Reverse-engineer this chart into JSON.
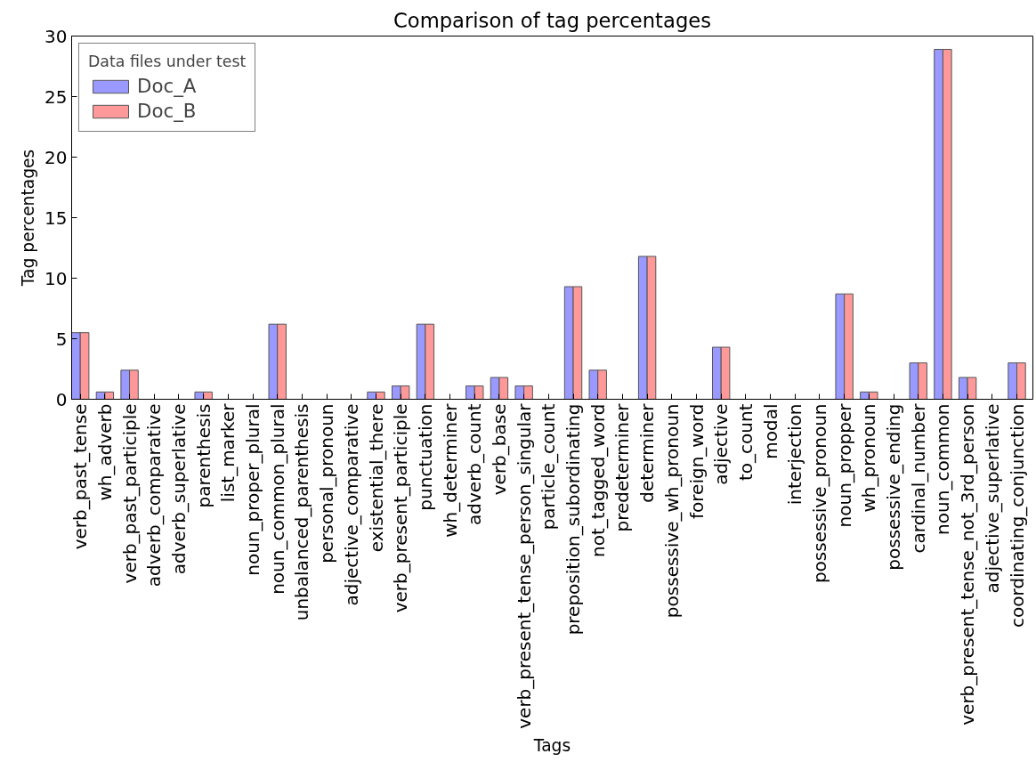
{
  "chart_data": {
    "type": "bar",
    "title": "Comparison of tag percentages",
    "xlabel": "Tags",
    "ylabel": "Tag percentages",
    "legend_title": "Data files under test",
    "categories": [
      "verb_past_tense",
      "wh_adverb",
      "verb_past_participle",
      "adverb_comparative",
      "adverb_superlative",
      "parenthesis",
      "list_marker",
      "noun_proper_plural",
      "noun_common_plural",
      "unbalanced_parenthesis",
      "personal_pronoun",
      "adjective_comparative",
      "existential_there",
      "verb_present_participle",
      "punctuation",
      "wh_determiner",
      "adverb_count",
      "verb_base",
      "verb_present_tense_person_singular",
      "particle_count",
      "preposition_subordinating",
      "not_tagged_word",
      "predeterminer",
      "determiner",
      "possessive_wh_pronoun",
      "foreign_word",
      "adjective",
      "to_count",
      "modal",
      "interjection",
      "possessive_pronoun",
      "noun_propper",
      "wh_pronoun",
      "possessive_ending",
      "cardinal_number",
      "noun_common",
      "verb_present_tense_not_3rd_person",
      "adjective_superlative",
      "coordinating_conjunction"
    ],
    "series": [
      {
        "name": "Doc_A",
        "color": "#9999ff",
        "values": [
          5.5,
          0.6,
          2.4,
          0,
          0,
          0.6,
          0,
          0,
          6.2,
          0,
          0,
          0,
          0.6,
          1.1,
          6.2,
          0,
          1.1,
          1.8,
          1.1,
          0,
          9.3,
          2.4,
          0,
          11.8,
          0,
          0,
          4.3,
          0,
          0,
          0,
          0,
          8.7,
          0.6,
          0,
          3.0,
          28.9,
          1.8,
          0,
          3.0
        ]
      },
      {
        "name": "Doc_B",
        "color": "#ff9999",
        "values": [
          5.5,
          0.6,
          2.4,
          0,
          0,
          0.6,
          0,
          0,
          6.2,
          0,
          0,
          0,
          0.6,
          1.1,
          6.2,
          0,
          1.1,
          1.8,
          1.1,
          0,
          9.3,
          2.4,
          0,
          11.8,
          0,
          0,
          4.3,
          0,
          0,
          0,
          0,
          8.7,
          0.6,
          0,
          3.0,
          28.9,
          1.8,
          0,
          3.0
        ]
      }
    ],
    "ylim": [
      0,
      30
    ],
    "yticks": [
      0,
      5,
      10,
      15,
      20,
      25,
      30
    ],
    "grid": false,
    "legend": "top left"
  }
}
